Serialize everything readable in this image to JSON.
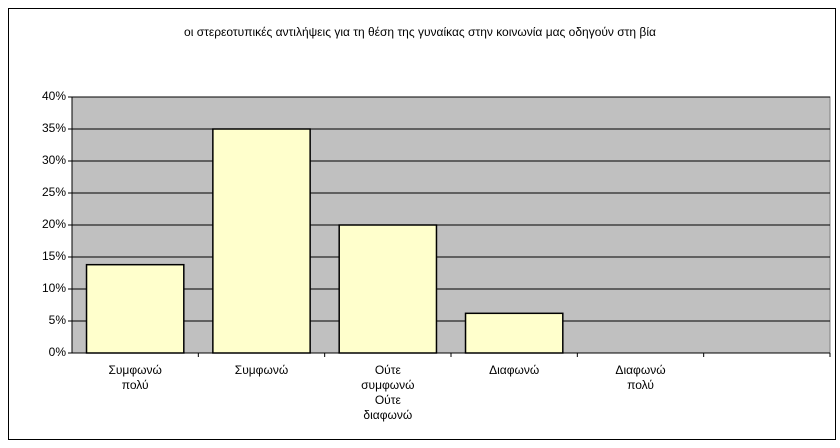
{
  "chart_data": {
    "type": "bar",
    "title": "οι στερεοτυπικές αντιλήψεις για τη θέση της γυναίκας στην κοινωνία μας οδηγούν στη βία",
    "categories": [
      "Συμφωνώ πολύ",
      "Συμφωνώ",
      "Ούτε συμφωνώ Ούτε διαφωνώ",
      "Διαφωνώ",
      "Διαφωνώ πολύ",
      null
    ],
    "values": [
      13.8,
      35,
      20,
      6.2,
      0,
      null
    ],
    "color": "#ffffcc",
    "ylim": [
      0,
      40
    ],
    "yticks": [
      {
        "value": 0,
        "label": "0%"
      },
      {
        "value": 5,
        "label": "5%"
      },
      {
        "value": 10,
        "label": "10%"
      },
      {
        "value": 15,
        "label": "15%"
      },
      {
        "value": 20,
        "label": "20%"
      },
      {
        "value": 25,
        "label": "25%"
      },
      {
        "value": 30,
        "label": "30%"
      },
      {
        "value": 35,
        "label": "35%"
      },
      {
        "value": 40,
        "label": "40%"
      }
    ],
    "grid": true
  }
}
